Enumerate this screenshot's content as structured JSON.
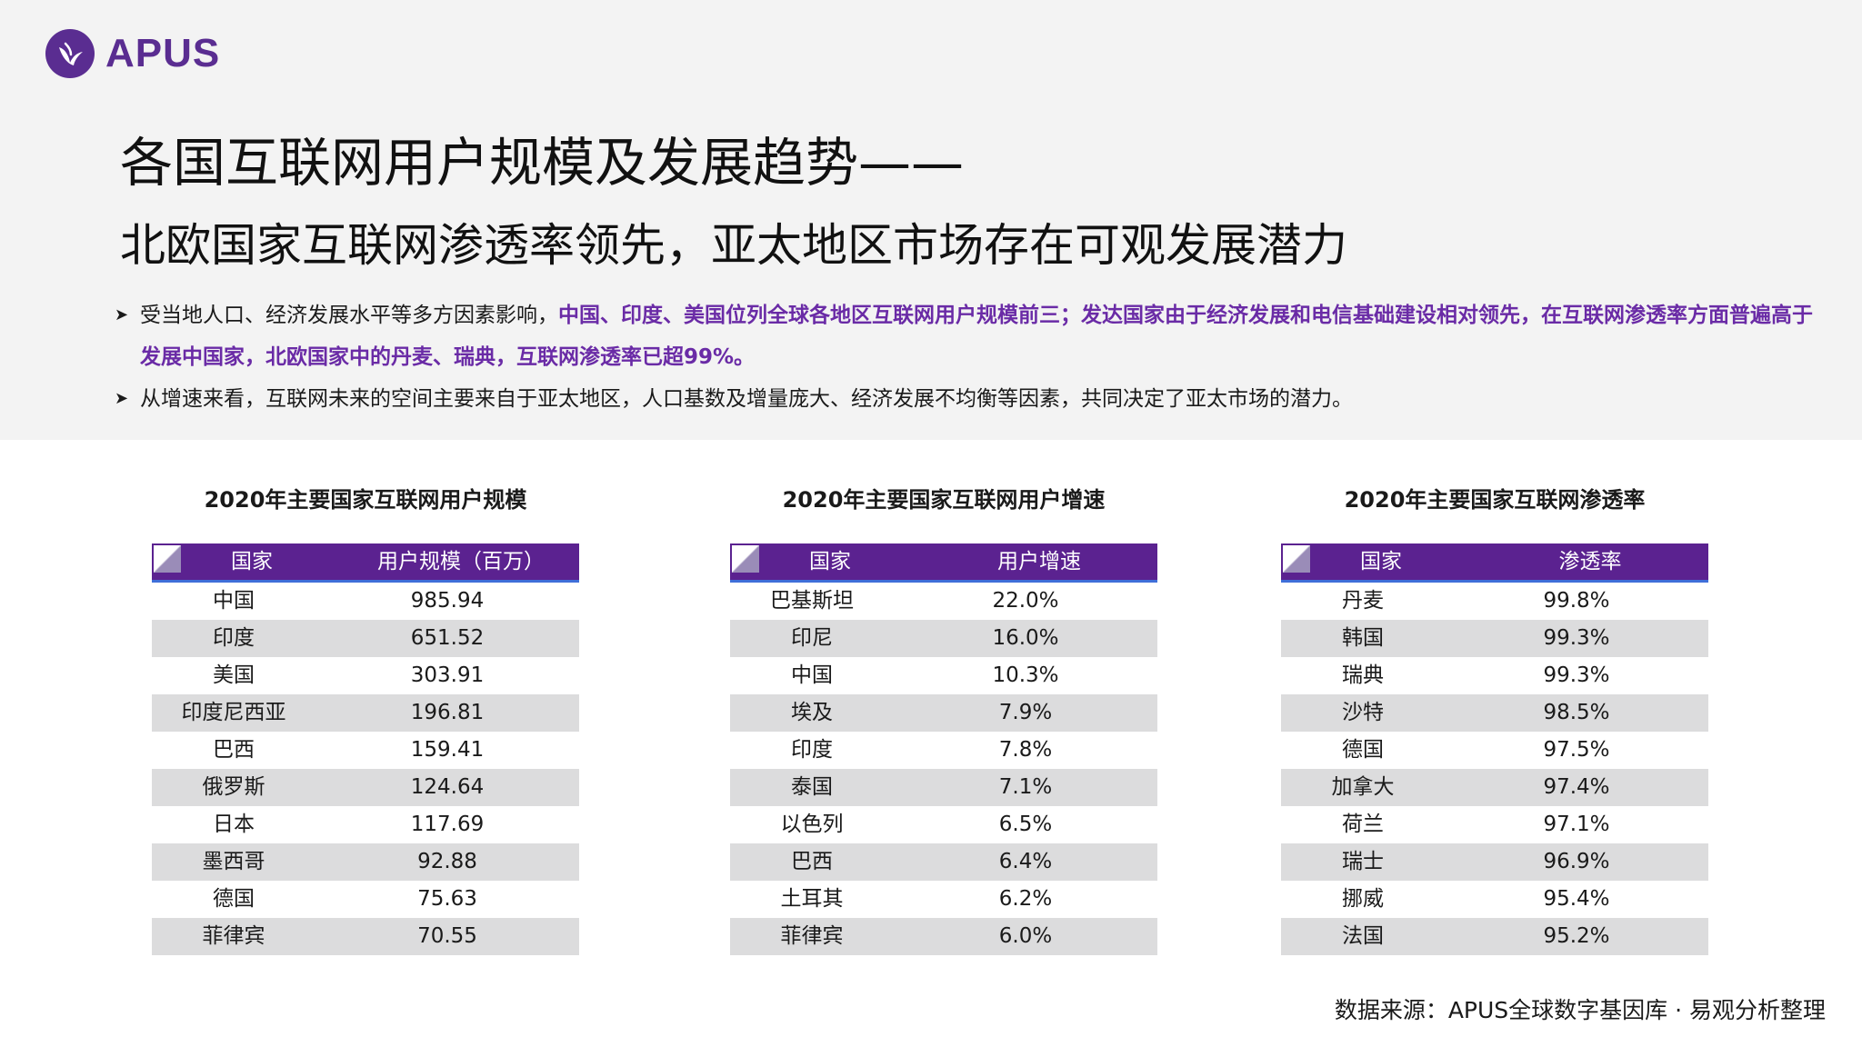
{
  "brand": {
    "logo_text": "APUS"
  },
  "title": {
    "line1": "各国互联网用户规模及发展趋势——",
    "line2": "北欧国家互联网渗透率领先，亚太地区市场存在可观发展潜力"
  },
  "bullets": [
    {
      "text_a": "受当地人口、经济发展水平等多方因素影响，",
      "highlight": "中国、印度、美国位列全球各地区互联网用户规模前三；发达国家由于经济发展和电信基础建设相对领先，在互联网渗透率方面普遍高于发展中国家，北欧国家中的丹麦、瑞典，互联网渗透率已超99%。"
    },
    {
      "text_a": "从增速来看，互联网未来的空间主要来自于亚太地区，人口基数及增量庞大、经济发展不均衡等因素，共同决定了亚太市场的潜力。"
    }
  ],
  "tables": [
    {
      "title": "2020年主要国家互联网用户规模",
      "headers": [
        "国家",
        "用户规模（百万）"
      ],
      "rows": [
        [
          "中国",
          "985.94"
        ],
        [
          "印度",
          "651.52"
        ],
        [
          "美国",
          "303.91"
        ],
        [
          "印度尼西亚",
          "196.81"
        ],
        [
          "巴西",
          "159.41"
        ],
        [
          "俄罗斯",
          "124.64"
        ],
        [
          "日本",
          "117.69"
        ],
        [
          "墨西哥",
          "92.88"
        ],
        [
          "德国",
          "75.63"
        ],
        [
          "菲律宾",
          "70.55"
        ]
      ]
    },
    {
      "title": "2020年主要国家互联网用户增速",
      "headers": [
        "国家",
        "用户增速"
      ],
      "rows": [
        [
          "巴基斯坦",
          "22.0%"
        ],
        [
          "印尼",
          "16.0%"
        ],
        [
          "中国",
          "10.3%"
        ],
        [
          "埃及",
          "7.9%"
        ],
        [
          "印度",
          "7.8%"
        ],
        [
          "泰国",
          "7.1%"
        ],
        [
          "以色列",
          "6.5%"
        ],
        [
          "巴西",
          "6.4%"
        ],
        [
          "土耳其",
          "6.2%"
        ],
        [
          "菲律宾",
          "6.0%"
        ]
      ]
    },
    {
      "title": "2020年主要国家互联网渗透率",
      "headers": [
        "国家",
        "渗透率"
      ],
      "rows": [
        [
          "丹麦",
          "99.8%"
        ],
        [
          "韩国",
          "99.3%"
        ],
        [
          "瑞典",
          "99.3%"
        ],
        [
          "沙特",
          "98.5%"
        ],
        [
          "德国",
          "97.5%"
        ],
        [
          "加拿大",
          "97.4%"
        ],
        [
          "荷兰",
          "97.1%"
        ],
        [
          "瑞士",
          "96.9%"
        ],
        [
          "挪威",
          "95.4%"
        ],
        [
          "法国",
          "95.2%"
        ]
      ]
    }
  ],
  "source": "数据来源：APUS全球数字基因库 · 易观分析整理",
  "colors": {
    "brand": "#5a2d91",
    "header": "#5b2290",
    "highlight": "#6a2ba6",
    "row_alt": "#dcdcdd"
  }
}
